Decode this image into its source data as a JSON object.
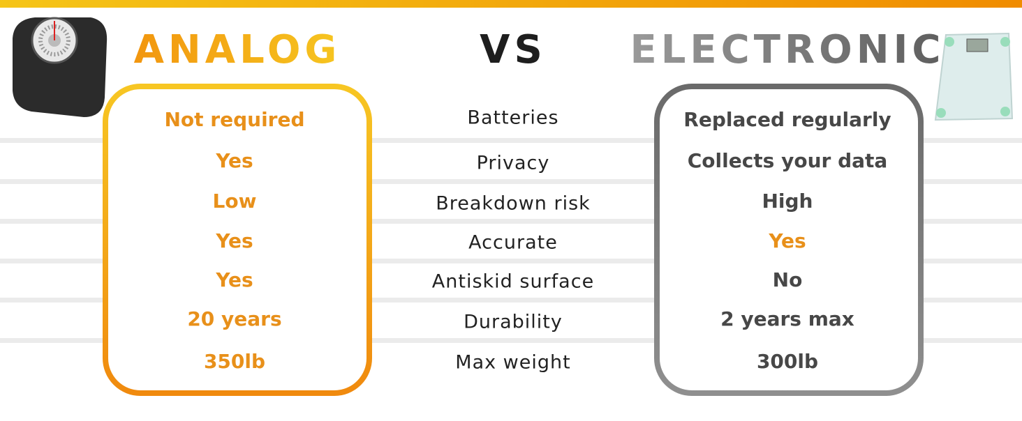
{
  "header": {
    "left_title": "ANALOG",
    "middle_title": "VS",
    "right_title": "ELECTRONIC"
  },
  "table": {
    "rows": [
      [
        "Batteries",
        "Not required",
        "Replaced regularly"
      ],
      [
        "Privacy",
        "Yes",
        "Collects your data"
      ],
      [
        "Breakdown risk",
        "Low",
        "High"
      ],
      [
        "Accurate",
        "Yes",
        "Yes"
      ],
      [
        "Antiskid surface",
        "Yes",
        "No"
      ],
      [
        "Durability",
        "20 years",
        "2 years max"
      ],
      [
        "Max weight",
        "350lb",
        "300lb"
      ]
    ]
  }
}
